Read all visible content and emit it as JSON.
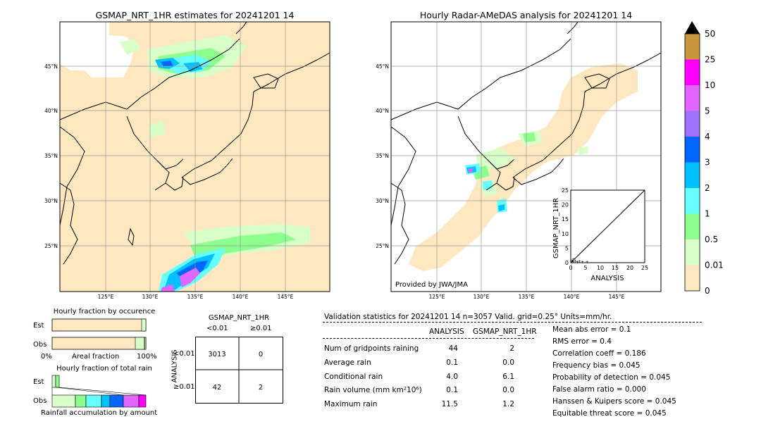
{
  "left_map": {
    "title": "GSMAP_NRT_1HR estimates for 20241201 14",
    "lat_labels": [
      "45°N",
      "40°N",
      "35°N",
      "30°N",
      "25°N"
    ],
    "lon_labels": [
      "125°E",
      "130°E",
      "135°E",
      "140°E",
      "145°E"
    ]
  },
  "right_map": {
    "title": "Hourly Radar-AMeDAS analysis for 20241201 14",
    "lat_labels": [
      "45°N",
      "40°N",
      "35°N",
      "30°N",
      "25°N"
    ],
    "lon_labels": [
      "125°E",
      "130°E",
      "135°E",
      "140°E",
      "145°E"
    ],
    "credit": "Provided by JWA/JMA"
  },
  "inset": {
    "ylabel": "GSMAP_NRT_1HR",
    "xlabel": "ANALYSIS",
    "ticks": [
      "0",
      "5",
      "10",
      "15",
      "20",
      "25"
    ]
  },
  "colorbar": {
    "labels": [
      "50",
      "25",
      "10",
      "5",
      "4",
      "3",
      "2",
      "1",
      "0.5",
      "0.01",
      "0"
    ],
    "colors": [
      "#c8963c",
      "#ff00ff",
      "#e066ff",
      "#a070ff",
      "#0066ff",
      "#00c0ff",
      "#66ffff",
      "#8cff8c",
      "#d8ffc8",
      "#ffe8c0"
    ]
  },
  "occurrence": {
    "title": "Hourly fraction by occurence",
    "rows": [
      "Est",
      "Obs"
    ],
    "axis": [
      "0%",
      "Areal fraction",
      "100%"
    ]
  },
  "total": {
    "title": "Hourly fraction of total rain",
    "rows": [
      "Est",
      "Obs"
    ],
    "axis_label": "Rainfall accumulation by amount"
  },
  "contingency": {
    "col_title": "GSMAP_NRT_1HR",
    "col_labels": [
      "<0.01",
      "≥0.01"
    ],
    "row_title": "ANALYSIS",
    "row_labels": [
      "<0.01",
      "≥0.01"
    ],
    "cells": [
      "3013",
      "0",
      "42",
      "2"
    ]
  },
  "validation": {
    "header": "Validation statistics for 20241201 14  n=3057 Valid. grid=0.25° Units=mm/hr.",
    "col_analysis": "ANALYSIS",
    "col_gsmap": "GSMAP_NRT_1HR",
    "rows": [
      {
        "label": "Num of gridpoints raining",
        "a": "44",
        "g": "2"
      },
      {
        "label": "Average rain",
        "a": "0.1",
        "g": "0.0"
      },
      {
        "label": "Conditional rain",
        "a": "4.0",
        "g": "6.1"
      },
      {
        "label": "Rain volume (mm km²10⁶)",
        "a": "0.1",
        "g": "0.0"
      },
      {
        "label": "Maximum rain",
        "a": "11.5",
        "g": "1.2"
      }
    ],
    "scores": [
      "Mean abs error =    0.1",
      "RMS error =    0.4",
      "Correlation coeff =  0.186",
      "Frequency bias =  0.045",
      "Probability of detection =  0.045",
      "False alarm ratio =  0.000",
      "Hanssen & Kuipers score =  0.045",
      "Equitable threat score =  0.045"
    ]
  },
  "chart_data": [
    {
      "type": "heatmap",
      "title": "GSMAP_NRT_1HR estimates for 20241201 14",
      "xlabel": "",
      "ylabel": "",
      "x_ticks": [
        "125°E",
        "130°E",
        "135°E",
        "140°E",
        "145°E"
      ],
      "y_ticks": [
        "45°N",
        "40°N",
        "35°N",
        "30°N",
        "25°N"
      ]
    },
    {
      "type": "heatmap",
      "title": "Hourly Radar-AMeDAS analysis for 20241201 14",
      "xlabel": "",
      "ylabel": "",
      "x_ticks": [
        "125°E",
        "130°E",
        "135°E",
        "140°E",
        "145°E"
      ],
      "y_ticks": [
        "45°N",
        "40°N",
        "35°N",
        "30°N",
        "25°N"
      ]
    },
    {
      "type": "scatter",
      "xlabel": "ANALYSIS",
      "ylabel": "GSMAP_NRT_1HR",
      "xlim": [
        0,
        25
      ],
      "ylim": [
        0,
        25
      ],
      "points": [
        [
          0.3,
          0.2
        ],
        [
          0.8,
          0.4
        ],
        [
          1.5,
          0.6
        ],
        [
          2.2,
          0.3
        ],
        [
          3.0,
          0.5
        ],
        [
          4.0,
          0.2
        ],
        [
          5.5,
          0.3
        ],
        [
          1.0,
          1.2
        ],
        [
          0.5,
          0.8
        ]
      ]
    },
    {
      "type": "table",
      "col_labels": [
        "<0.01",
        "≥0.01"
      ],
      "row_labels": [
        "<0.01",
        "≥0.01"
      ],
      "values": [
        [
          3013,
          0
        ],
        [
          42,
          2
        ]
      ]
    }
  ]
}
